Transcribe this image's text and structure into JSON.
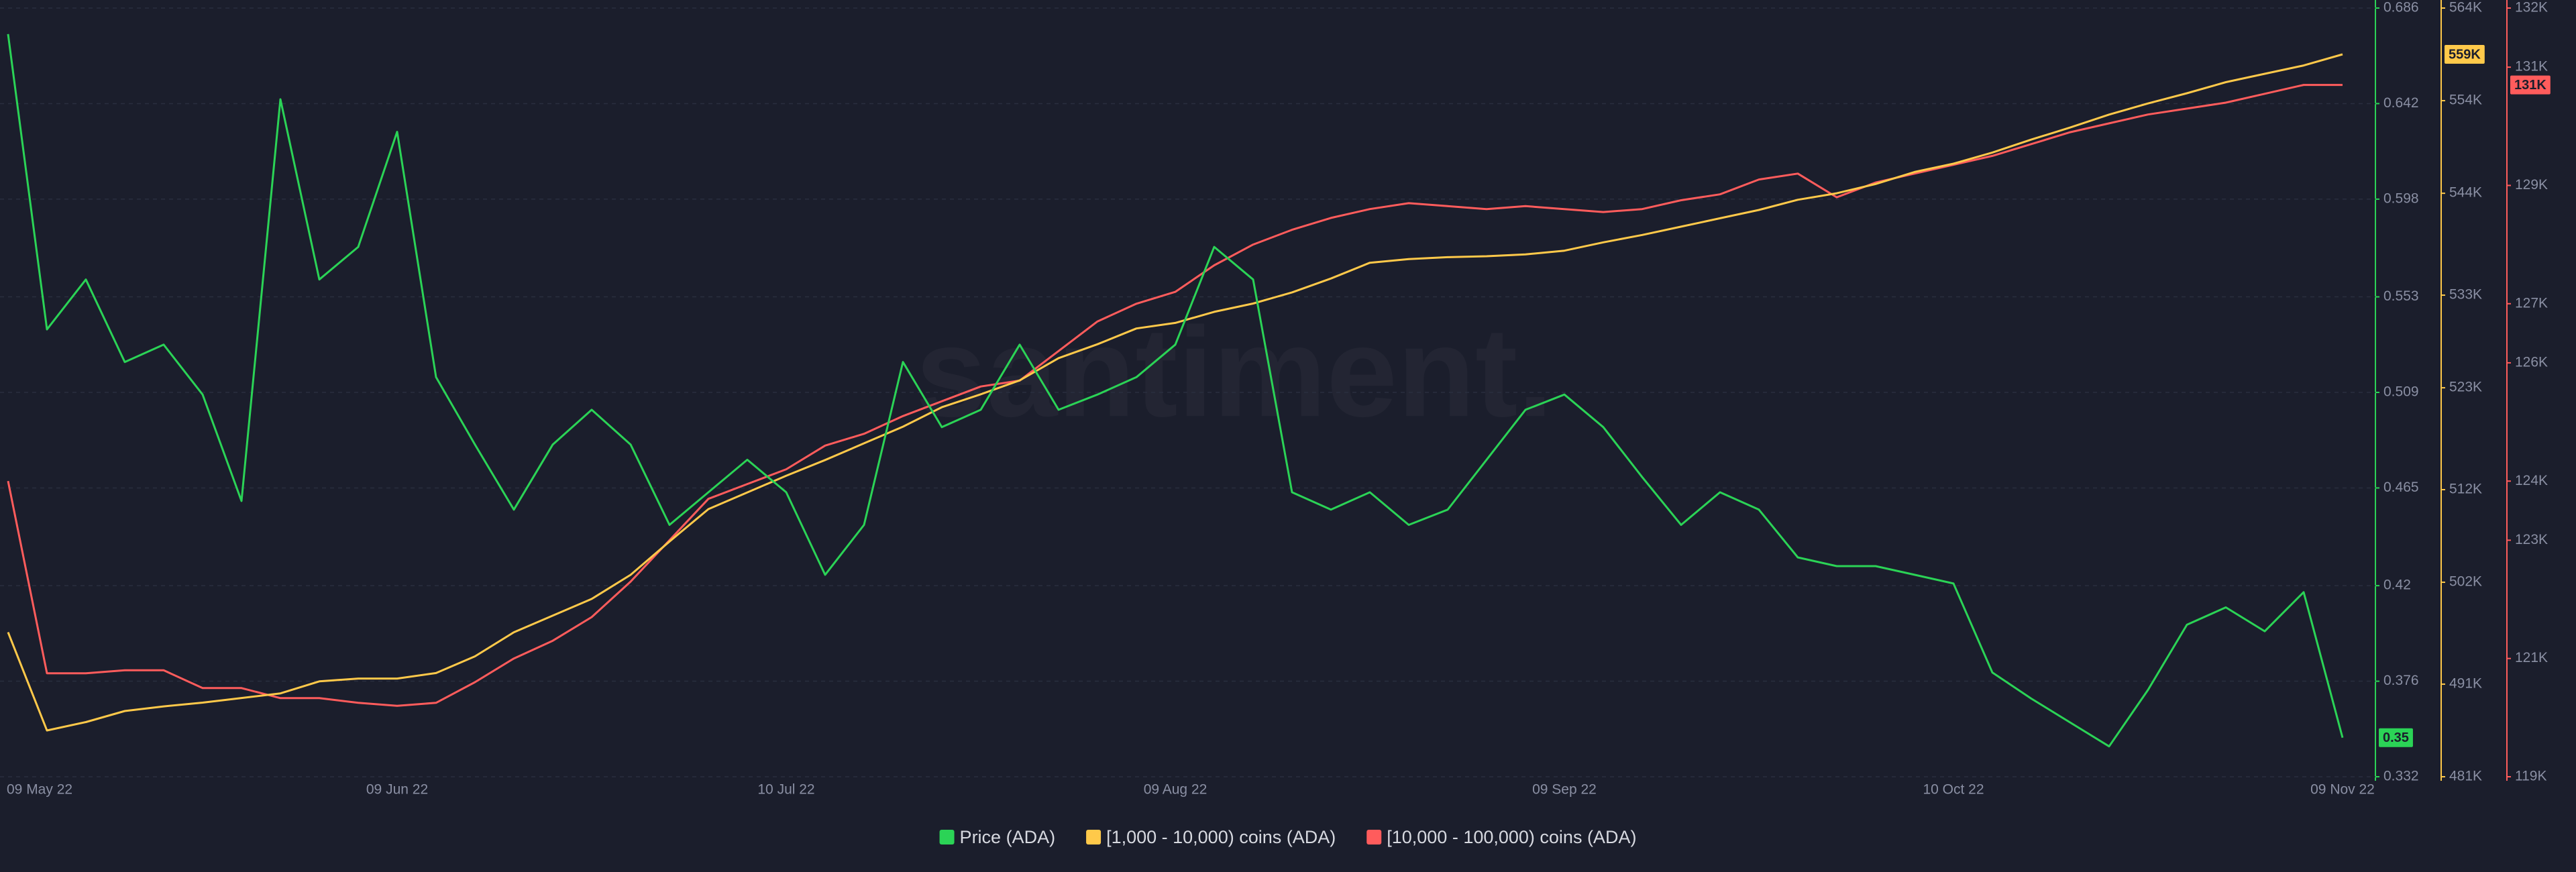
{
  "chart_data": {
    "type": "line",
    "watermark": "santiment.",
    "categories": [
      "09 May 22",
      null,
      null,
      null,
      null,
      null,
      null,
      null,
      null,
      null,
      "09 Jun 22",
      null,
      null,
      null,
      null,
      null,
      null,
      null,
      null,
      null,
      "10 Jul 22",
      null,
      null,
      null,
      null,
      null,
      null,
      null,
      null,
      null,
      "09 Aug 22",
      null,
      null,
      null,
      null,
      null,
      null,
      null,
      null,
      null,
      "09 Sep 22",
      null,
      null,
      null,
      null,
      null,
      null,
      null,
      null,
      null,
      "10 Oct 22",
      null,
      null,
      null,
      null,
      null,
      null,
      null,
      null,
      null,
      "09 Nov 22"
    ],
    "ylim": [
      0.332,
      0.686
    ],
    "yticks": [
      0.332,
      0.376,
      0.42,
      0.465,
      0.509,
      0.553,
      0.598,
      0.642,
      0.686
    ],
    "y2lim": [
      481000,
      564000
    ],
    "y2ticks": [
      {
        "value": 481000,
        "label": "481K"
      },
      {
        "value": 491000,
        "label": "491K"
      },
      {
        "value": 502000,
        "label": "502K"
      },
      {
        "value": 512000,
        "label": "512K"
      },
      {
        "value": 523000,
        "label": "523K"
      },
      {
        "value": 533000,
        "label": "533K"
      },
      {
        "value": 544000,
        "label": "544K"
      },
      {
        "value": 554000,
        "label": "554K"
      },
      {
        "value": 564000,
        "label": "564K"
      }
    ],
    "y3lim": [
      119000,
      132000
    ],
    "y3ticks": [
      {
        "value": 119000,
        "label": "119K"
      },
      {
        "value": 121000,
        "label": "121K"
      },
      {
        "value": 123000,
        "label": "123K"
      },
      {
        "value": 124000,
        "label": "124K"
      },
      {
        "value": 126000,
        "label": "126K"
      },
      {
        "value": 127000,
        "label": "127K"
      },
      {
        "value": 129000,
        "label": "129K"
      },
      {
        "value": 131000,
        "label": "131K"
      },
      {
        "value": 132000,
        "label": "132K"
      }
    ],
    "grid": true,
    "legend": "bottom",
    "series": [
      {
        "name": "Price (ADA)",
        "color": "#2bd356",
        "axis": "y",
        "values": [
          0.674,
          0.538,
          0.561,
          0.523,
          0.531,
          0.508,
          0.459,
          0.644,
          0.561,
          0.576,
          0.629,
          0.516,
          0.485,
          0.455,
          0.485,
          0.501,
          0.485,
          0.448,
          0.463,
          0.478,
          0.463,
          0.425,
          0.448,
          0.523,
          0.493,
          0.501,
          0.531,
          0.501,
          0.508,
          0.516,
          0.531,
          0.576,
          0.561,
          0.463,
          0.455,
          0.463,
          0.448,
          0.455,
          0.478,
          0.501,
          0.508,
          0.493,
          0.47,
          0.448,
          0.463,
          0.455,
          0.433,
          0.429,
          0.429,
          0.425,
          0.421,
          0.38,
          0.368,
          0.357,
          0.346,
          0.372,
          0.402,
          0.41,
          0.399,
          0.417,
          0.35
        ]
      },
      {
        "name": "[1,000 - 10,000) coins (ADA)",
        "color": "#ffc94a",
        "axis": "y2",
        "last_value_label": "559K",
        "values": [
          496600,
          486000,
          486900,
          488100,
          488600,
          489000,
          489500,
          490000,
          491300,
          491600,
          491600,
          492200,
          494000,
          496600,
          498400,
          500200,
          502800,
          506400,
          509900,
          511700,
          513500,
          515200,
          517000,
          518800,
          520900,
          522300,
          523800,
          526200,
          527700,
          529400,
          530000,
          531200,
          532100,
          533300,
          534800,
          536500,
          536900,
          537100,
          537200,
          537400,
          537800,
          538700,
          539500,
          540400,
          541300,
          542200,
          543300,
          544000,
          545000,
          546300,
          547200,
          548400,
          549800,
          551100,
          552500,
          553700,
          554800,
          556000,
          556900,
          557800,
          559000
        ]
      },
      {
        "name": "[10,000 - 100,000) coins (ADA)",
        "color": "#ff5c5c",
        "axis": "y3",
        "last_value_label": "131K",
        "values": [
          124000,
          120750,
          120750,
          120800,
          120800,
          120500,
          120500,
          120330,
          120330,
          120250,
          120200,
          120250,
          120600,
          121000,
          121300,
          121700,
          122300,
          123000,
          123700,
          123950,
          124200,
          124600,
          124800,
          125100,
          125350,
          125600,
          125700,
          126200,
          126700,
          127000,
          127200,
          127650,
          128000,
          128250,
          128450,
          128600,
          128700,
          128650,
          128600,
          128650,
          128600,
          128550,
          128600,
          128750,
          128850,
          129100,
          129200,
          128800,
          129050,
          129200,
          129350,
          129500,
          129700,
          129900,
          130050,
          130200,
          130300,
          130400,
          130550,
          130700,
          130700
        ]
      }
    ]
  }
}
